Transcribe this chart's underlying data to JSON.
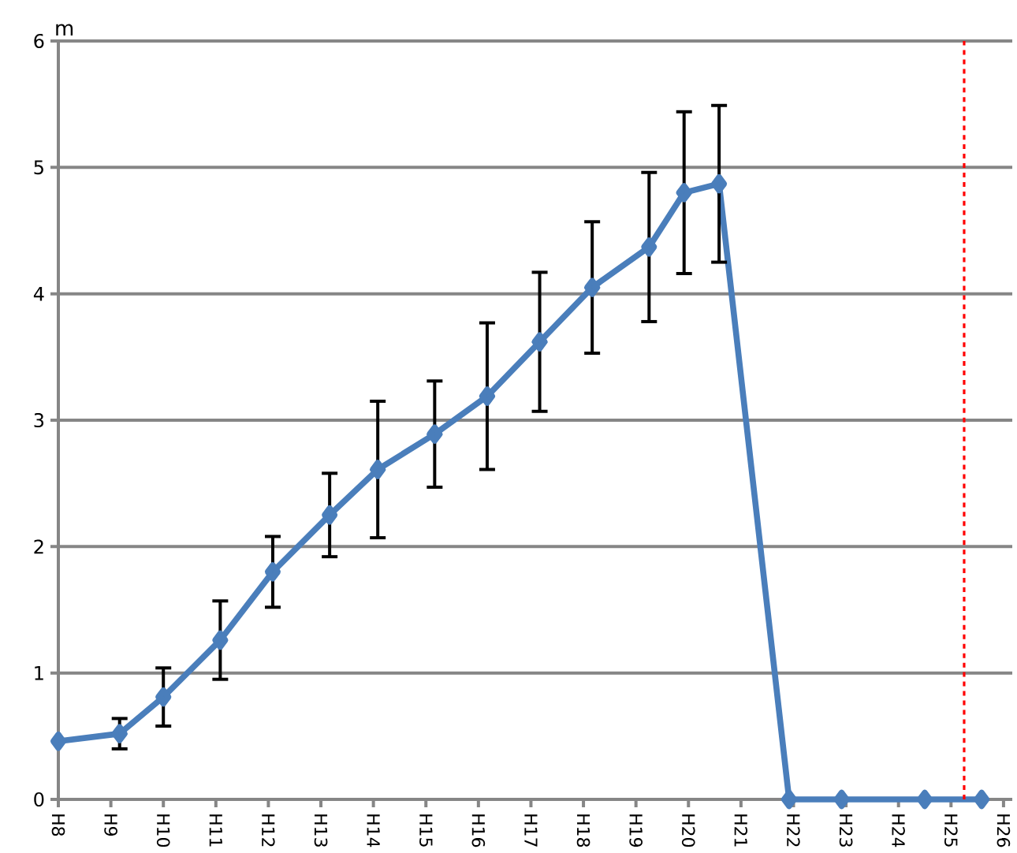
{
  "chart_data": {
    "type": "line",
    "ylabel": "m",
    "x": [
      "1996-01",
      "1997-03",
      "1998-01",
      "1999-02",
      "2000-02",
      "2001-03",
      "2002-02",
      "2003-03",
      "2004-03",
      "2005-03",
      "2006-03",
      "2007-04",
      "2007-12",
      "2008-08",
      "2009-12",
      "2010-12",
      "2012-07",
      "2013-08"
    ],
    "series": [
      {
        "color": "#4a7ebb",
        "values": [
          0.46,
          0.52,
          0.81,
          1.26,
          1.8,
          2.25,
          2.61,
          2.89,
          3.19,
          3.62,
          4.05,
          4.37,
          4.8,
          4.87,
          0,
          0,
          0,
          0
        ],
        "errors": [
          null,
          0.12,
          0.23,
          0.31,
          0.28,
          0.33,
          0.54,
          0.42,
          0.58,
          0.55,
          0.52,
          0.59,
          0.64,
          0.62,
          null,
          null,
          null,
          null
        ]
      }
    ],
    "xlim": [
      "1996-01",
      "2014-03"
    ],
    "xticks": [
      {
        "value": "1996",
        "label": "H8"
      },
      {
        "value": "1997",
        "label": "H9"
      },
      {
        "value": "1998",
        "label": "H10"
      },
      {
        "value": "1999",
        "label": "H11"
      },
      {
        "value": "2000",
        "label": "H12"
      },
      {
        "value": "2001",
        "label": "H13"
      },
      {
        "value": "2002",
        "label": "H14"
      },
      {
        "value": "2003",
        "label": "H15"
      },
      {
        "value": "2004",
        "label": "H16"
      },
      {
        "value": "2005",
        "label": "H17"
      },
      {
        "value": "2006",
        "label": "H18"
      },
      {
        "value": "2007",
        "label": "H19"
      },
      {
        "value": "2008",
        "label": "H20"
      },
      {
        "value": "2009",
        "label": "H21"
      },
      {
        "value": "2010",
        "label": "H22"
      },
      {
        "value": "2011",
        "label": "H23"
      },
      {
        "value": "2012",
        "label": "H24"
      },
      {
        "value": "2013",
        "label": "H25"
      },
      {
        "value": "2014",
        "label": "H26"
      }
    ],
    "ylim": [
      0,
      6
    ],
    "yticks": [
      0,
      1,
      2,
      3,
      4,
      5,
      6
    ],
    "grid": "y",
    "marker": "diamond",
    "line_style": "solid",
    "ref_lines": [
      {
        "axis": "x",
        "value": "2013-04",
        "color": "#ff0000",
        "line_style": "dashed"
      }
    ]
  }
}
